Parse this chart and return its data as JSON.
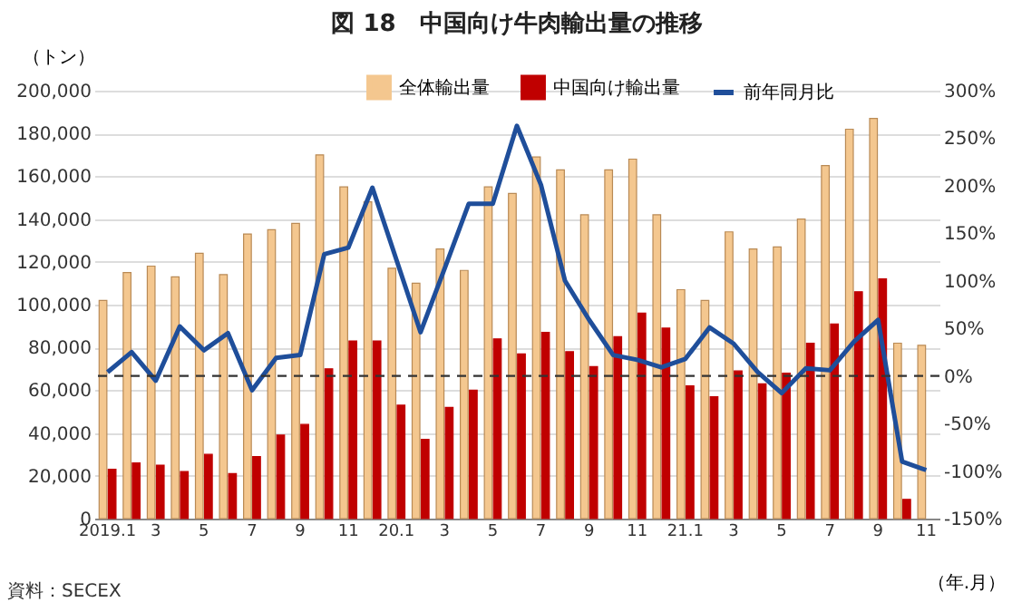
{
  "chart_data": {
    "type": "bar",
    "title": "図 18　中国向け牛肉輸出量の推移",
    "ylabel": "（トン）",
    "xlabel": "（年.月）",
    "annotations": [
      "資料：SECEX"
    ],
    "categories": [
      "2019.1",
      null,
      "3",
      null,
      "5",
      null,
      "7",
      null,
      "9",
      null,
      "11",
      null,
      "20.1",
      null,
      "3",
      null,
      "5",
      null,
      "7",
      null,
      "9",
      null,
      "11",
      null,
      "21.1",
      null,
      "3",
      null,
      "5",
      null,
      "7",
      null,
      "9",
      null,
      "11"
    ],
    "series": [
      {
        "name": "全体輸出量",
        "color": "#f4c78f",
        "values": [
          102000,
          115000,
          118000,
          113000,
          124000,
          114000,
          133000,
          135000,
          138000,
          170000,
          155000,
          148000,
          117000,
          110000,
          126000,
          116000,
          155000,
          152000,
          169000,
          163000,
          142000,
          163000,
          168000,
          142000,
          107000,
          102000,
          134000,
          126000,
          127000,
          140000,
          165000,
          182000,
          187000,
          82000,
          81000
        ]
      },
      {
        "name": "中国向け輸出量",
        "color": "#c00000",
        "values": [
          23000,
          26000,
          25000,
          22000,
          30000,
          21000,
          29000,
          39000,
          44000,
          70000,
          83000,
          83000,
          53000,
          37000,
          52000,
          60000,
          84000,
          77000,
          87000,
          78000,
          71000,
          85000,
          96000,
          89000,
          62000,
          57000,
          69000,
          63000,
          68000,
          82000,
          91000,
          106000,
          112000,
          9000,
          null
        ]
      },
      {
        "name": "前年同月比",
        "type": "line",
        "axis": "y2",
        "color": "#1f4e9a",
        "values": [
          4,
          25,
          -5,
          52,
          27,
          45,
          -15,
          19,
          22,
          128,
          135,
          198,
          122,
          46,
          113,
          181,
          181,
          263,
          201,
          100,
          59,
          22,
          17,
          9,
          18,
          51,
          34,
          4,
          -18,
          8,
          6,
          36,
          59,
          -90,
          -99
        ]
      }
    ],
    "ylim": [
      0,
      200000
    ],
    "yticks": [
      {
        "value": 0,
        "label": "0"
      },
      {
        "value": 20000,
        "label": "20,000"
      },
      {
        "value": 40000,
        "label": "40,000"
      },
      {
        "value": 60000,
        "label": "60,000"
      },
      {
        "value": 80000,
        "label": "80,000"
      },
      {
        "value": 100000,
        "label": "100,000"
      },
      {
        "value": 120000,
        "label": "120,000"
      },
      {
        "value": 140000,
        "label": "140,000"
      },
      {
        "value": 160000,
        "label": "160,000"
      },
      {
        "value": 180000,
        "label": "180,000"
      },
      {
        "value": 200000,
        "label": "200,000"
      }
    ],
    "y2lim": [
      -150,
      300
    ],
    "y2ticks": [
      {
        "value": -150,
        "label": "-150%"
      },
      {
        "value": -100,
        "label": "-100%"
      },
      {
        "value": -50,
        "label": "-50%"
      },
      {
        "value": 0,
        "label": "0%"
      },
      {
        "value": 50,
        "label": "50%"
      },
      {
        "value": 100,
        "label": "100%"
      },
      {
        "value": 150,
        "label": "150%"
      },
      {
        "value": 200,
        "label": "200%"
      },
      {
        "value": 250,
        "label": "250%"
      },
      {
        "value": 300,
        "label": "300%"
      }
    ],
    "ref_lines": [
      {
        "axis": "y2",
        "value": 0,
        "color": "#333333",
        "line_style": "dashed"
      }
    ],
    "grid": "y",
    "legend": "top right",
    "marker": "none",
    "line_style": "solid"
  }
}
